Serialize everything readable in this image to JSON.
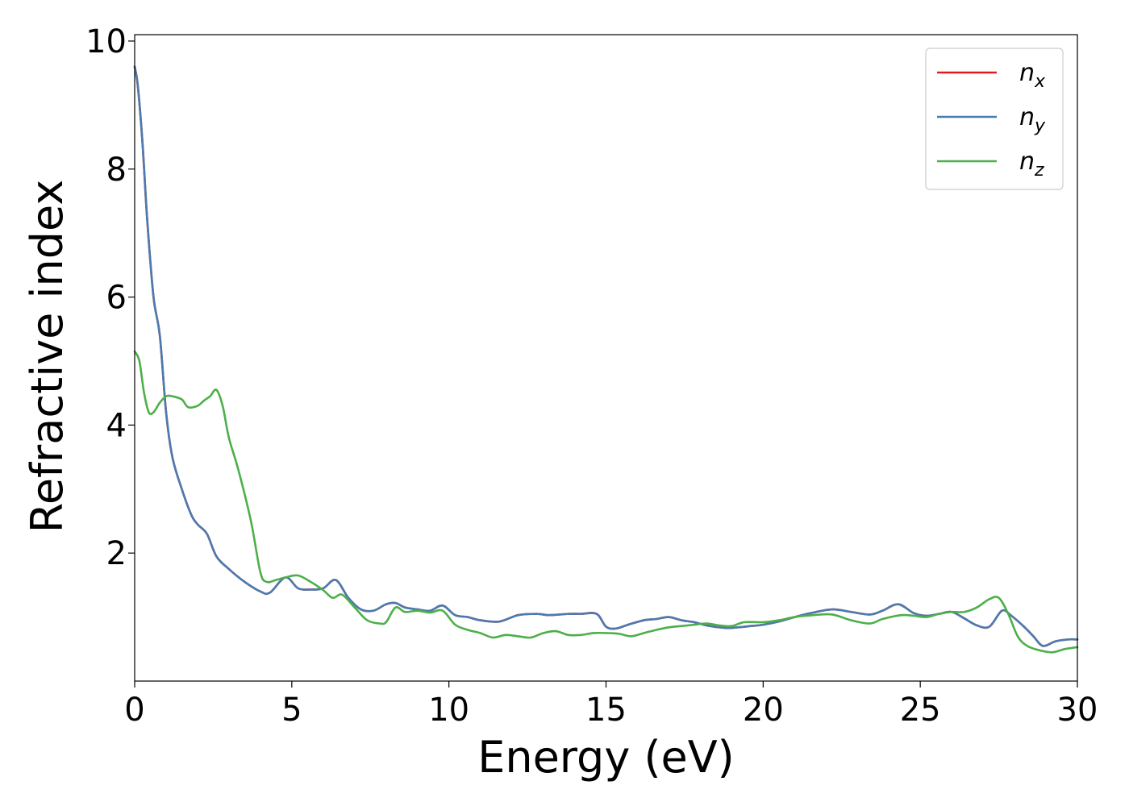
{
  "chart_data": {
    "type": "line",
    "title": "",
    "xlabel": "Energy (eV)",
    "ylabel": "Refractive index",
    "xlim": [
      0,
      30
    ],
    "ylim": [
      0,
      10.1
    ],
    "xticks": [
      0,
      5,
      10,
      15,
      20,
      25,
      30
    ],
    "yticks": [
      2,
      4,
      6,
      8,
      10
    ],
    "grid": false,
    "legend_position": "top-right",
    "series": [
      {
        "name": "n",
        "name_sub": "x",
        "color": "#e41a1c",
        "x": [
          0,
          0.1,
          0.25,
          0.4,
          0.6,
          0.8,
          1.0,
          1.2,
          1.5,
          1.8,
          2.0,
          2.3,
          2.6,
          3.0,
          3.5,
          4.0,
          4.3,
          4.8,
          5.2,
          5.6,
          6.0,
          6.4,
          6.8,
          7.2,
          7.6,
          8.0,
          8.3,
          8.6,
          9.0,
          9.4,
          9.8,
          10.2,
          10.6,
          11.0,
          11.6,
          12.2,
          12.8,
          13.2,
          13.8,
          14.2,
          14.7,
          15.0,
          15.3,
          15.7,
          16.2,
          16.6,
          17.0,
          17.4,
          17.8,
          18.2,
          18.8,
          19.2,
          19.6,
          20.0,
          20.5,
          21.0,
          21.5,
          22.2,
          22.8,
          23.4,
          23.8,
          24.3,
          24.8,
          25.2,
          25.6,
          26.0,
          26.4,
          26.8,
          27.2,
          27.6,
          27.9,
          28.3,
          28.6,
          28.9,
          29.3,
          29.7,
          30.0
        ],
        "y": [
          9.6,
          9.3,
          8.4,
          7.2,
          6.0,
          5.4,
          4.2,
          3.5,
          3.0,
          2.6,
          2.45,
          2.3,
          1.95,
          1.75,
          1.55,
          1.4,
          1.38,
          1.62,
          1.45,
          1.43,
          1.45,
          1.58,
          1.3,
          1.12,
          1.1,
          1.2,
          1.22,
          1.15,
          1.12,
          1.1,
          1.18,
          1.03,
          1.0,
          0.95,
          0.93,
          1.03,
          1.05,
          1.03,
          1.05,
          1.05,
          1.05,
          0.85,
          0.82,
          0.88,
          0.95,
          0.97,
          1.0,
          0.95,
          0.92,
          0.87,
          0.83,
          0.84,
          0.86,
          0.88,
          0.93,
          1.0,
          1.06,
          1.12,
          1.08,
          1.04,
          1.1,
          1.2,
          1.06,
          1.02,
          1.05,
          1.08,
          0.98,
          0.87,
          0.85,
          1.1,
          1.02,
          0.85,
          0.7,
          0.55,
          0.62,
          0.65,
          0.65
        ]
      },
      {
        "name": "n",
        "name_sub": "y",
        "color": "#4a7bb0",
        "x": [
          0,
          0.1,
          0.25,
          0.4,
          0.6,
          0.8,
          1.0,
          1.2,
          1.5,
          1.8,
          2.0,
          2.3,
          2.6,
          3.0,
          3.5,
          4.0,
          4.3,
          4.8,
          5.2,
          5.6,
          6.0,
          6.4,
          6.8,
          7.2,
          7.6,
          8.0,
          8.3,
          8.6,
          9.0,
          9.4,
          9.8,
          10.2,
          10.6,
          11.0,
          11.6,
          12.2,
          12.8,
          13.2,
          13.8,
          14.2,
          14.7,
          15.0,
          15.3,
          15.7,
          16.2,
          16.6,
          17.0,
          17.4,
          17.8,
          18.2,
          18.8,
          19.2,
          19.6,
          20.0,
          20.5,
          21.0,
          21.5,
          22.2,
          22.8,
          23.4,
          23.8,
          24.3,
          24.8,
          25.2,
          25.6,
          26.0,
          26.4,
          26.8,
          27.2,
          27.6,
          27.9,
          28.3,
          28.6,
          28.9,
          29.3,
          29.7,
          30.0
        ],
        "y": [
          9.6,
          9.3,
          8.4,
          7.2,
          6.0,
          5.4,
          4.2,
          3.5,
          3.0,
          2.6,
          2.45,
          2.3,
          1.95,
          1.75,
          1.55,
          1.4,
          1.38,
          1.62,
          1.45,
          1.43,
          1.45,
          1.58,
          1.3,
          1.12,
          1.1,
          1.2,
          1.22,
          1.15,
          1.12,
          1.1,
          1.18,
          1.03,
          1.0,
          0.95,
          0.93,
          1.03,
          1.05,
          1.03,
          1.05,
          1.05,
          1.05,
          0.85,
          0.82,
          0.88,
          0.95,
          0.97,
          1.0,
          0.95,
          0.92,
          0.87,
          0.83,
          0.84,
          0.86,
          0.88,
          0.93,
          1.0,
          1.06,
          1.12,
          1.08,
          1.04,
          1.1,
          1.2,
          1.06,
          1.02,
          1.05,
          1.08,
          0.98,
          0.87,
          0.85,
          1.1,
          1.02,
          0.85,
          0.7,
          0.55,
          0.62,
          0.65,
          0.65
        ]
      },
      {
        "name": "n",
        "name_sub": "z",
        "color": "#4daf4a",
        "x": [
          0,
          0.15,
          0.3,
          0.45,
          0.6,
          0.8,
          1.0,
          1.2,
          1.5,
          1.7,
          2.0,
          2.2,
          2.4,
          2.6,
          2.8,
          3.0,
          3.3,
          3.7,
          4.0,
          4.2,
          4.5,
          4.8,
          5.2,
          5.6,
          6.0,
          6.3,
          6.6,
          7.0,
          7.4,
          7.8,
          8.0,
          8.3,
          8.6,
          9.0,
          9.4,
          9.8,
          10.2,
          10.6,
          11.0,
          11.4,
          11.8,
          12.2,
          12.6,
          13.0,
          13.4,
          13.8,
          14.2,
          14.6,
          15.0,
          15.4,
          15.8,
          16.2,
          16.6,
          17.0,
          17.4,
          17.8,
          18.2,
          18.6,
          19.0,
          19.4,
          20.0,
          20.5,
          21.0,
          21.6,
          22.2,
          22.8,
          23.4,
          23.8,
          24.4,
          24.8,
          25.2,
          25.6,
          26.0,
          26.4,
          26.8,
          27.2,
          27.5,
          27.8,
          28.1,
          28.4,
          28.8,
          29.2,
          29.6,
          30.0
        ],
        "y": [
          5.15,
          5.0,
          4.5,
          4.2,
          4.2,
          4.35,
          4.45,
          4.45,
          4.4,
          4.28,
          4.3,
          4.38,
          4.45,
          4.55,
          4.3,
          3.8,
          3.3,
          2.5,
          1.7,
          1.55,
          1.58,
          1.62,
          1.65,
          1.55,
          1.42,
          1.3,
          1.35,
          1.15,
          0.95,
          0.9,
          0.92,
          1.15,
          1.08,
          1.1,
          1.07,
          1.1,
          0.88,
          0.8,
          0.75,
          0.68,
          0.72,
          0.7,
          0.68,
          0.75,
          0.78,
          0.72,
          0.72,
          0.75,
          0.75,
          0.74,
          0.7,
          0.75,
          0.8,
          0.84,
          0.86,
          0.88,
          0.9,
          0.87,
          0.86,
          0.92,
          0.92,
          0.95,
          1.0,
          1.03,
          1.04,
          0.95,
          0.9,
          0.97,
          1.03,
          1.02,
          1.0,
          1.05,
          1.08,
          1.08,
          1.15,
          1.28,
          1.3,
          1.05,
          0.7,
          0.55,
          0.48,
          0.45,
          0.5,
          0.53
        ]
      }
    ]
  }
}
